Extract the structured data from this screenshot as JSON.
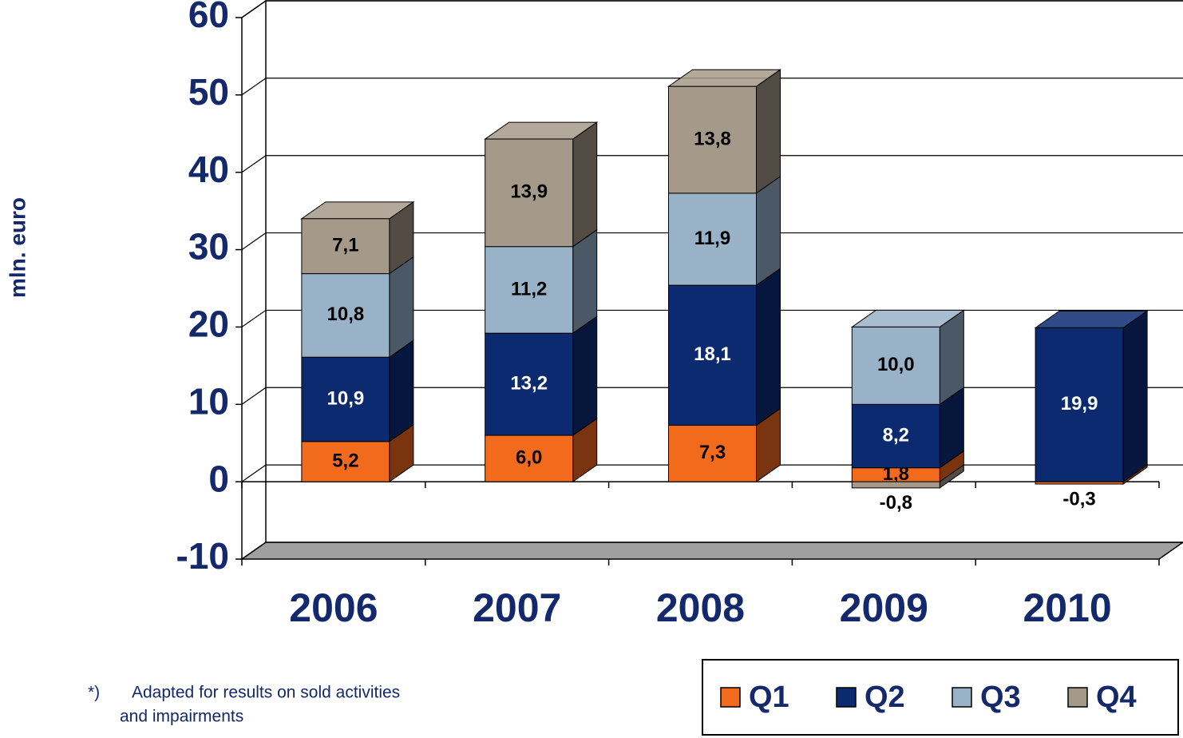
{
  "chart_data": {
    "type": "bar3d_stacked",
    "y_label": "mln. euro",
    "categories": [
      "2006",
      "2007",
      "2008",
      "2009",
      "2010"
    ],
    "series": [
      {
        "name": "Q1",
        "color": "#f26b1d",
        "side": "#7a3510",
        "values": [
          5.2,
          6.0,
          7.3,
          1.8,
          -0.3
        ],
        "value_labels": [
          "5,2",
          "6,0",
          "7,3",
          "1,8",
          "-0,3"
        ]
      },
      {
        "name": "Q2",
        "color": "#0b2a6f",
        "side": "#06163d",
        "values": [
          10.9,
          13.2,
          18.1,
          8.2,
          19.9
        ],
        "value_labels": [
          "10,9",
          "13,2",
          "18,1",
          "8,2",
          "19,9"
        ]
      },
      {
        "name": "Q3",
        "color": "#99b2c8",
        "side": "#4b5866",
        "values": [
          10.8,
          11.2,
          11.9,
          10.0,
          null
        ],
        "value_labels": [
          "10,8",
          "11,2",
          "11,9",
          "10,0",
          null
        ]
      },
      {
        "name": "Q4",
        "color": "#a59a8a",
        "side": "#524c44",
        "values": [
          7.1,
          13.9,
          13.8,
          -0.8,
          null
        ],
        "value_labels": [
          "7,1",
          "13,9",
          "13,8",
          "-0,8",
          null
        ]
      }
    ],
    "ylim": [
      -10,
      60
    ],
    "yticks": [
      -10,
      0,
      10,
      20,
      30,
      40,
      50,
      60
    ],
    "grid": true
  },
  "footnote": {
    "marker": "*)",
    "lines": [
      "Adapted for results on sold activities",
      "and impairments"
    ]
  }
}
